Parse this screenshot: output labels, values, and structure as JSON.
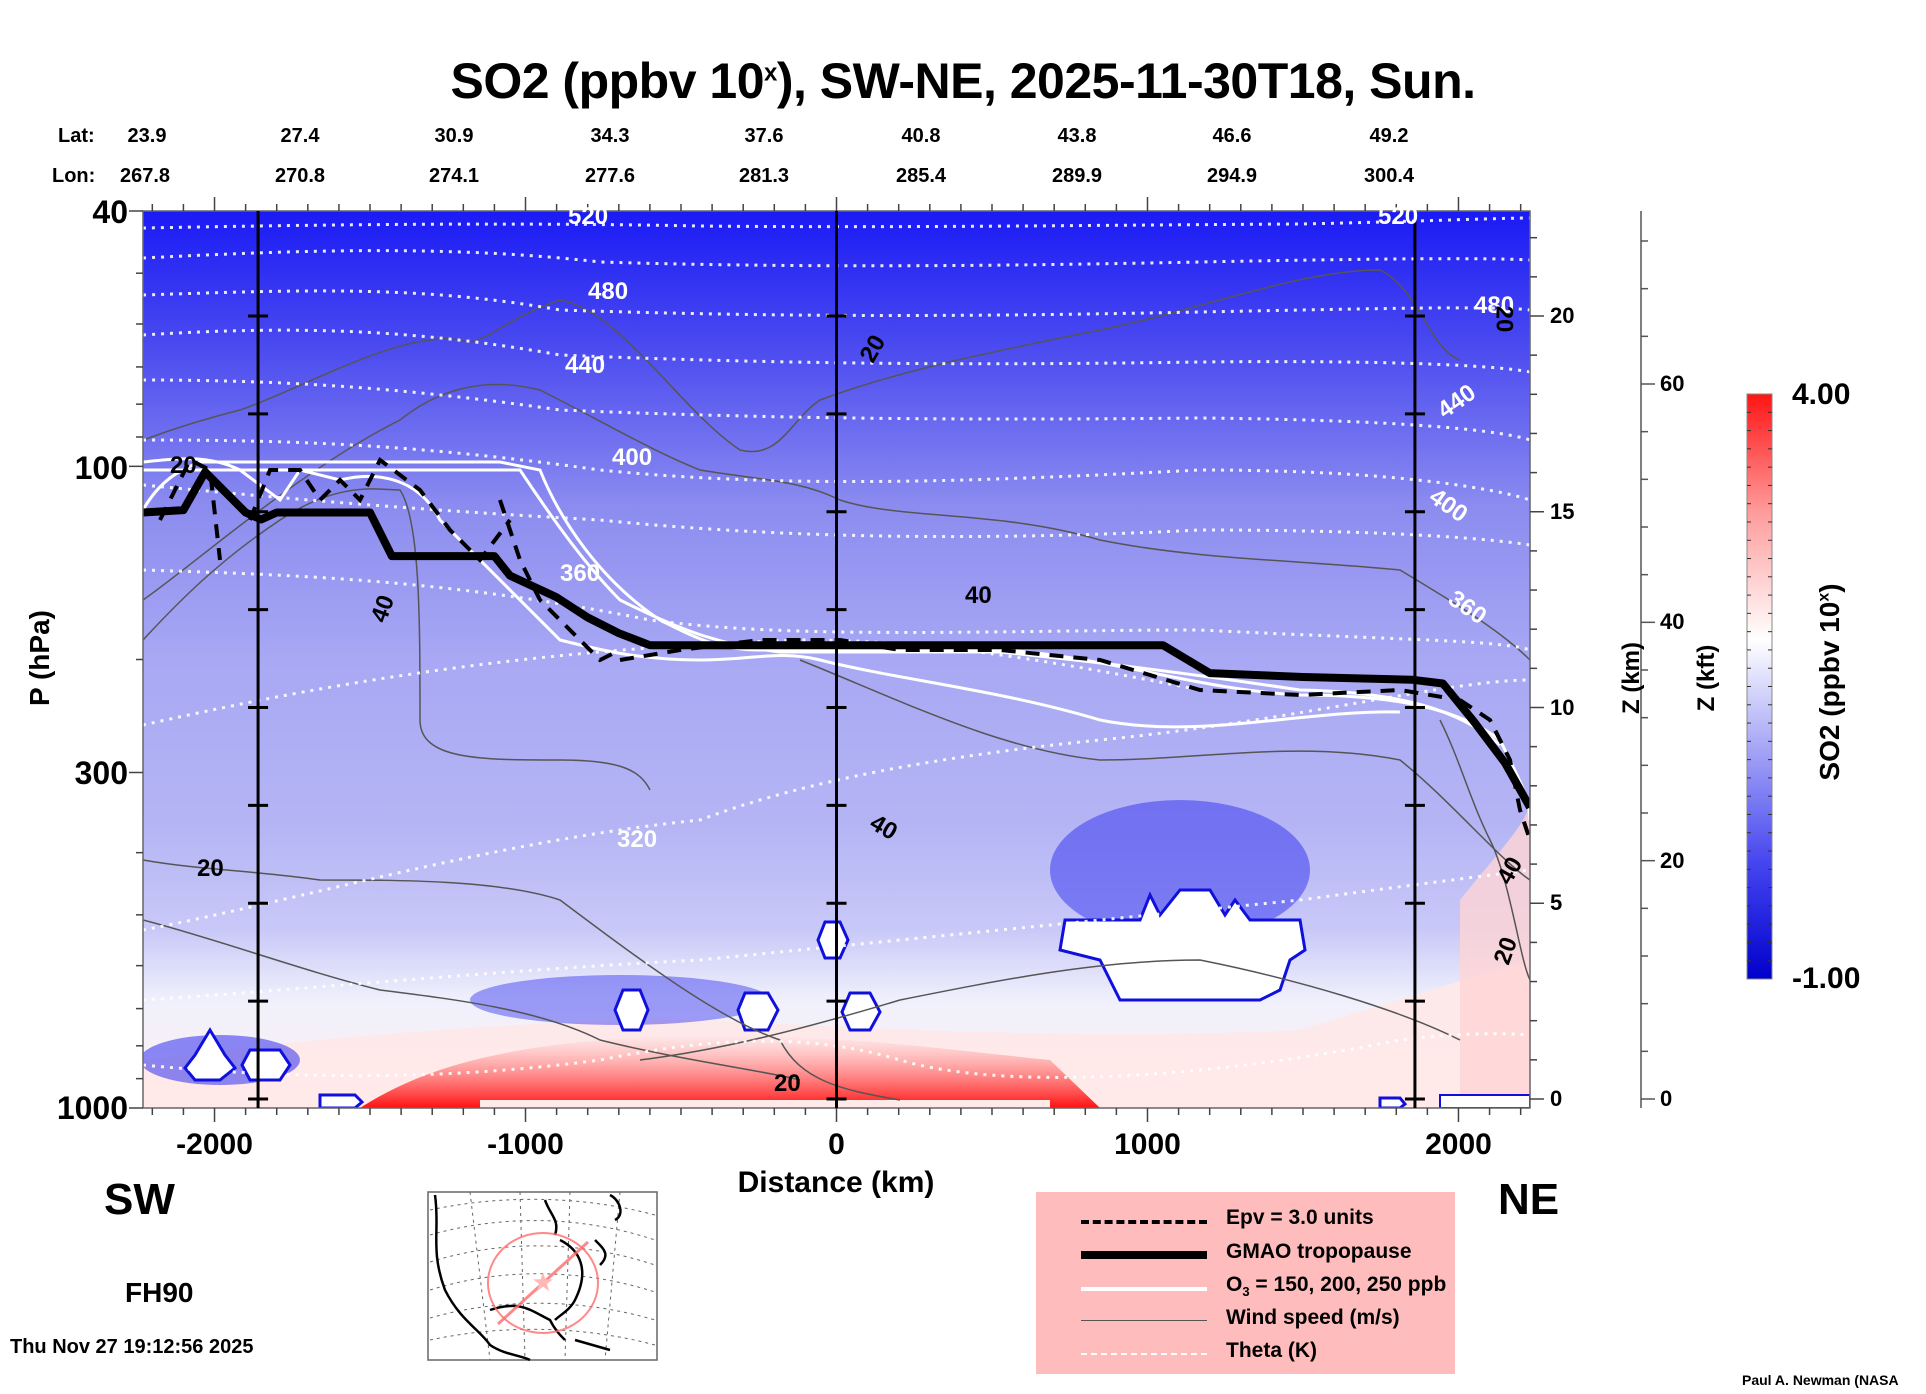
{
  "title": {
    "main": "SO2 (ppbv 10",
    "sup": "x",
    "rest": "), SW-NE, 2025-11-30T18, Sun."
  },
  "lat_label": "Lat:",
  "lon_label": "Lon:",
  "lat_values": [
    "23.9",
    "27.4",
    "30.9",
    "34.3",
    "37.6",
    "40.8",
    "43.8",
    "46.6",
    "49.2"
  ],
  "lon_values": [
    "267.8",
    "270.8",
    "274.1",
    "277.6",
    "281.3",
    "285.4",
    "289.9",
    "294.9",
    "300.4"
  ],
  "direction_left": "SW",
  "direction_right": "NE",
  "forecast_hour": "FH90",
  "timestamp": "Thu Nov 27 19:12:56 2025",
  "credit": "Paul A. Newman (NASA",
  "colorbar": {
    "label_main": "SO2 (ppbv 10",
    "label_sup": "x",
    "label_end": ")",
    "max_label": "4.00",
    "min_label": "-1.00",
    "colors_low": "#0000dd",
    "colors_mid": "#ffffff",
    "colors_high": "#ff1010"
  },
  "legend": {
    "items": [
      {
        "label": "Epv = 3.0 units",
        "style": "dashed-black"
      },
      {
        "label": "GMAO tropopause",
        "style": "thick-black"
      },
      {
        "label_main": "O",
        "label_sub": "3",
        "label_rest": " = 150, 200, 250 ppb",
        "style": "white"
      },
      {
        "label": "Wind speed (m/s)",
        "style": "thin-gray"
      },
      {
        "label": "Theta (K)",
        "style": "dotted-white"
      }
    ]
  },
  "chart_data": {
    "type": "heatmap",
    "title": "SO2 (ppbv 10^x), SW-NE, 2025-11-30T18, Sun.",
    "xlabel": "Distance (km)",
    "ylabel": "P (hPa)",
    "y2label": "Z (km)",
    "y3label": "Z (kft)",
    "xlim": [
      -2230,
      2230
    ],
    "ylim": [
      1000,
      40
    ],
    "yscale": "log",
    "x_ticks": [
      -2000,
      -1000,
      0,
      1000,
      2000
    ],
    "x_tick_labels": [
      "-2000",
      "-1000",
      "0",
      "1000",
      "2000"
    ],
    "y_ticks": [
      40,
      100,
      300,
      1000
    ],
    "y_tick_labels": [
      "40",
      "100",
      "300",
      "1000"
    ],
    "zkm_ticks": [
      0,
      5,
      10,
      15,
      20
    ],
    "zkft_ticks": [
      0,
      20,
      40,
      60
    ],
    "colorbar_range": [
      -1.0,
      4.0
    ],
    "vertical_markers_km": [
      -1860,
      0,
      1860
    ],
    "theta_contours_K": [
      {
        "value": 520,
        "points": [
          [
            -2230,
            58
          ],
          [
            -1500,
            55
          ],
          [
            -800,
            56
          ],
          [
            0,
            57
          ],
          [
            800,
            56
          ],
          [
            1500,
            55
          ],
          [
            2230,
            52
          ]
        ]
      },
      {
        "value": 480,
        "points": [
          [
            -2230,
            68
          ],
          [
            -1700,
            66
          ],
          [
            -1400,
            64
          ],
          [
            -900,
            70
          ],
          [
            0,
            72
          ],
          [
            1000,
            70
          ],
          [
            1800,
            66
          ],
          [
            2230,
            64
          ]
        ]
      },
      {
        "value": 440,
        "points": [
          [
            -2230,
            80
          ],
          [
            -1800,
            80
          ],
          [
            -1400,
            77
          ],
          [
            -900,
            84
          ],
          [
            0,
            88
          ],
          [
            1000,
            86
          ],
          [
            1800,
            84
          ],
          [
            2230,
            86
          ]
        ]
      },
      {
        "value": 400,
        "points": [
          [
            -2230,
            98
          ],
          [
            -1800,
            97
          ],
          [
            -1300,
            94
          ],
          [
            -800,
            103
          ],
          [
            0,
            110
          ],
          [
            1000,
            106
          ],
          [
            1800,
            106
          ],
          [
            2230,
            115
          ]
        ]
      },
      {
        "value": 360,
        "points": [
          [
            -2230,
            138
          ],
          [
            -1800,
            138
          ],
          [
            -1200,
            142
          ],
          [
            -600,
            150
          ],
          [
            0,
            158
          ],
          [
            1000,
            150
          ],
          [
            1800,
            150
          ],
          [
            2230,
            165
          ]
        ]
      },
      {
        "value": 320,
        "points": [
          [
            -2230,
            245
          ],
          [
            -1800,
            230
          ],
          [
            -1000,
            205
          ],
          [
            -400,
            185
          ],
          [
            0,
            178
          ],
          [
            800,
            170
          ],
          [
            1500,
            190
          ],
          [
            2230,
            225
          ]
        ]
      },
      {
        "value": 300,
        "points": [
          [
            -2230,
            430
          ],
          [
            -1800,
            420
          ],
          [
            -1000,
            400
          ],
          [
            -400,
            370
          ],
          [
            0,
            355
          ],
          [
            800,
            340
          ],
          [
            1500,
            330
          ],
          [
            2230,
            330
          ]
        ]
      },
      {
        "value": 280,
        "points": [
          [
            -2230,
            800
          ],
          [
            -1800,
            780
          ],
          [
            -1200,
            760
          ],
          [
            -500,
            840
          ],
          [
            0,
            930
          ],
          [
            700,
            880
          ],
          [
            1500,
            650
          ],
          [
            2230,
            620
          ]
        ]
      }
    ],
    "tropopause_hPa": [
      [
        -2230,
        118
      ],
      [
        -2100,
        117
      ],
      [
        -2030,
        102
      ],
      [
        -1900,
        118
      ],
      [
        -1850,
        121
      ],
      [
        -1800,
        118
      ],
      [
        -1500,
        118
      ],
      [
        -1430,
        138
      ],
      [
        -1100,
        138
      ],
      [
        -1050,
        148
      ],
      [
        -900,
        160
      ],
      [
        -800,
        172
      ],
      [
        -700,
        182
      ],
      [
        -600,
        190
      ],
      [
        -300,
        190
      ],
      [
        0,
        190
      ],
      [
        500,
        190
      ],
      [
        1050,
        190
      ],
      [
        1200,
        210
      ],
      [
        1500,
        213
      ],
      [
        1850,
        215
      ],
      [
        1950,
        218
      ],
      [
        2050,
        250
      ],
      [
        2150,
        290
      ],
      [
        2230,
        340
      ]
    ],
    "wind_speed_contours_ms": [
      20,
      40
    ],
    "o3_contours_ppb": [
      150,
      200,
      250
    ],
    "epv_contour_units": 3.0
  }
}
